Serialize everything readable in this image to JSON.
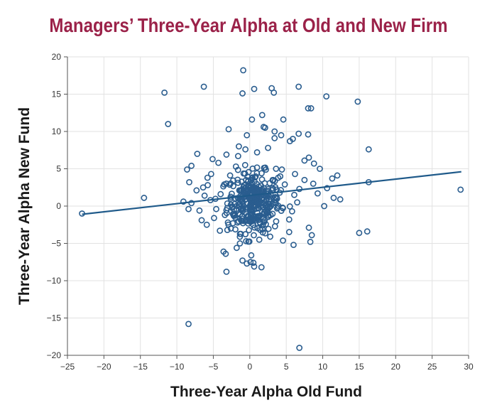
{
  "chart_data": {
    "type": "scatter",
    "title": "Managers’ Three-Year Alpha at Old and New Firm",
    "xlabel": "Three-Year Alpha Old Fund",
    "ylabel": "Three-Year Alpha New Fund",
    "xlim": [
      -25,
      30
    ],
    "ylim": [
      -20,
      20
    ],
    "xticks": [
      "−25",
      "−20",
      "−15",
      "−10",
      "−5",
      "0",
      "5",
      "10",
      "15",
      "20",
      "25",
      "30"
    ],
    "yticks": [
      "20",
      "15",
      "10",
      "5",
      "0",
      "−5",
      "−10",
      "−15",
      "−20"
    ],
    "grid": true,
    "colors": {
      "points": "#2a5d8f",
      "trend": "#1f5a8a",
      "title": "#9b2249"
    },
    "trendline": {
      "x": [
        -23,
        29
      ],
      "y": [
        -1.1,
        4.6
      ]
    },
    "outliers": [
      [
        -0.9,
        18.2
      ],
      [
        -11.7,
        15.2
      ],
      [
        -6.3,
        16.0
      ],
      [
        0.6,
        15.7
      ],
      [
        3.0,
        15.8
      ],
      [
        3.3,
        15.2
      ],
      [
        6.7,
        16.0
      ],
      [
        10.5,
        14.7
      ],
      [
        14.8,
        14.0
      ],
      [
        -1.0,
        15.1
      ],
      [
        8.0,
        13.1
      ],
      [
        8.4,
        13.1
      ],
      [
        -11.2,
        11.0
      ],
      [
        0.3,
        11.6
      ],
      [
        1.7,
        12.2
      ],
      [
        4.6,
        11.6
      ],
      [
        6.7,
        9.7
      ],
      [
        8.0,
        9.6
      ],
      [
        3.4,
        9.1
      ],
      [
        16.3,
        7.6
      ],
      [
        -2.9,
        10.3
      ],
      [
        -0.4,
        9.5
      ],
      [
        1.9,
        10.6
      ],
      [
        2.1,
        10.5
      ],
      [
        3.4,
        10.0
      ],
      [
        -7.2,
        7.0
      ],
      [
        -8.0,
        5.4
      ],
      [
        -8.6,
        4.9
      ],
      [
        -5.1,
        6.3
      ],
      [
        -4.3,
        5.8
      ],
      [
        -3.2,
        6.9
      ],
      [
        -1.6,
        6.7
      ],
      [
        5.5,
        8.7
      ],
      [
        5.9,
        9.0
      ],
      [
        4.3,
        9.5
      ],
      [
        8.1,
        6.5
      ],
      [
        8.8,
        5.7
      ],
      [
        9.6,
        5.0
      ],
      [
        7.5,
        6.1
      ],
      [
        6.2,
        4.3
      ],
      [
        -1.5,
        8.0
      ],
      [
        -0.6,
        7.6
      ],
      [
        1.0,
        7.2
      ],
      [
        2.5,
        7.8
      ],
      [
        -8.3,
        3.2
      ],
      [
        -7.3,
        2.1
      ],
      [
        -6.4,
        2.5
      ],
      [
        -5.8,
        3.8
      ],
      [
        -5.3,
        4.3
      ],
      [
        -9.1,
        0.6
      ],
      [
        -8.4,
        -0.4
      ],
      [
        -8.0,
        0.4
      ],
      [
        -14.5,
        1.1
      ],
      [
        -23.0,
        -1.0
      ],
      [
        -6.6,
        -1.9
      ],
      [
        -5.9,
        -2.5
      ],
      [
        -4.9,
        -1.6
      ],
      [
        -4.1,
        -3.3
      ],
      [
        -3.6,
        -6.1
      ],
      [
        -3.3,
        -6.4
      ],
      [
        -3.2,
        -8.8
      ],
      [
        -8.4,
        -15.8
      ],
      [
        -1.8,
        -5.6
      ],
      [
        -1.0,
        -7.3
      ],
      [
        -0.4,
        -7.7
      ],
      [
        0.1,
        -7.5
      ],
      [
        0.5,
        -7.6
      ],
      [
        0.6,
        -8.1
      ],
      [
        1.6,
        -8.2
      ],
      [
        0.2,
        -6.6
      ],
      [
        -0.5,
        -4.7
      ],
      [
        1.3,
        -4.5
      ],
      [
        2.8,
        -4.1
      ],
      [
        6.0,
        -5.2
      ],
      [
        8.3,
        -4.8
      ],
      [
        8.5,
        -3.9
      ],
      [
        8.1,
        -2.9
      ],
      [
        6.8,
        -19.0
      ],
      [
        15.0,
        -3.6
      ],
      [
        16.1,
        -3.4
      ],
      [
        28.9,
        2.2
      ],
      [
        16.3,
        3.2
      ],
      [
        11.3,
        3.7
      ],
      [
        12.0,
        4.1
      ],
      [
        10.6,
        2.4
      ],
      [
        11.5,
        1.1
      ],
      [
        12.4,
        0.9
      ],
      [
        10.2,
        0.0
      ],
      [
        9.3,
        1.7
      ],
      [
        8.7,
        3.0
      ],
      [
        7.5,
        3.5
      ],
      [
        6.8,
        2.3
      ],
      [
        6.1,
        1.5
      ],
      [
        6.5,
        0.5
      ],
      [
        5.8,
        -0.7
      ],
      [
        5.4,
        -1.8
      ],
      [
        4.5,
        -0.2
      ],
      [
        4.1,
        1.8
      ],
      [
        4.8,
        2.9
      ],
      [
        4.4,
        4.9
      ],
      [
        3.9,
        3.8
      ],
      [
        3.6,
        5.0
      ],
      [
        3.5,
        1.2
      ],
      [
        -4.0,
        1.6
      ],
      [
        -3.5,
        2.9
      ],
      [
        -3.0,
        -2.2
      ],
      [
        -2.6,
        -3.0
      ],
      [
        -2.2,
        -1.3
      ],
      [
        -2.7,
        4.1
      ],
      [
        -1.9,
        5.3
      ],
      [
        -4.6,
        -0.4
      ],
      [
        -5.4,
        0.8
      ],
      [
        -6.2,
        1.4
      ],
      [
        -6.9,
        -0.6
      ]
    ],
    "cluster": {
      "center": [
        0.5,
        0.5
      ],
      "sx": 1.8,
      "sy": 2.0,
      "count": 330
    }
  }
}
